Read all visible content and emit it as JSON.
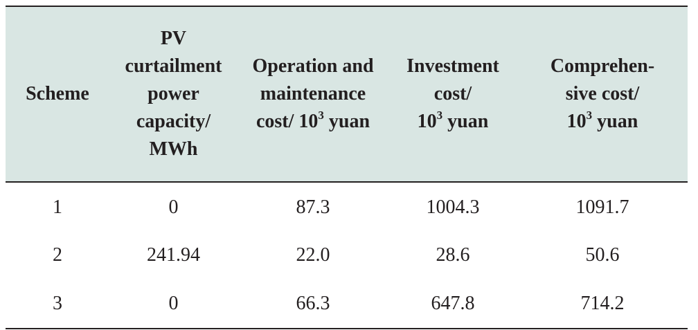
{
  "table": {
    "headers": {
      "scheme": "Scheme",
      "pv_curtailment": [
        "PV",
        "curtailment",
        "power",
        "capacity/",
        "MWh"
      ],
      "om_cost": {
        "line1": "Operation and",
        "line2": "maintenance",
        "line3_pre": "cost/ 10",
        "line3_sup": "3",
        "line3_post": " yuan"
      },
      "investment_cost": {
        "line1": "Investment",
        "line2": "cost/",
        "line3_pre": "10",
        "line3_sup": "3",
        "line3_post": " yuan"
      },
      "comprehensive_cost": {
        "line1": "Comprehen-",
        "line2": "sive cost/",
        "line3_pre": "10",
        "line3_sup": "3",
        "line3_post": " yuan"
      }
    },
    "rows": [
      {
        "scheme": "1",
        "pv_curtailment": "0",
        "om_cost": "87.3",
        "investment_cost": "1004.3",
        "comprehensive_cost": "1091.7"
      },
      {
        "scheme": "2",
        "pv_curtailment": "241.94",
        "om_cost": "22.0",
        "investment_cost": "28.6",
        "comprehensive_cost": "50.6"
      },
      {
        "scheme": "3",
        "pv_curtailment": "0",
        "om_cost": "66.3",
        "investment_cost": "647.8",
        "comprehensive_cost": "714.2"
      }
    ]
  }
}
